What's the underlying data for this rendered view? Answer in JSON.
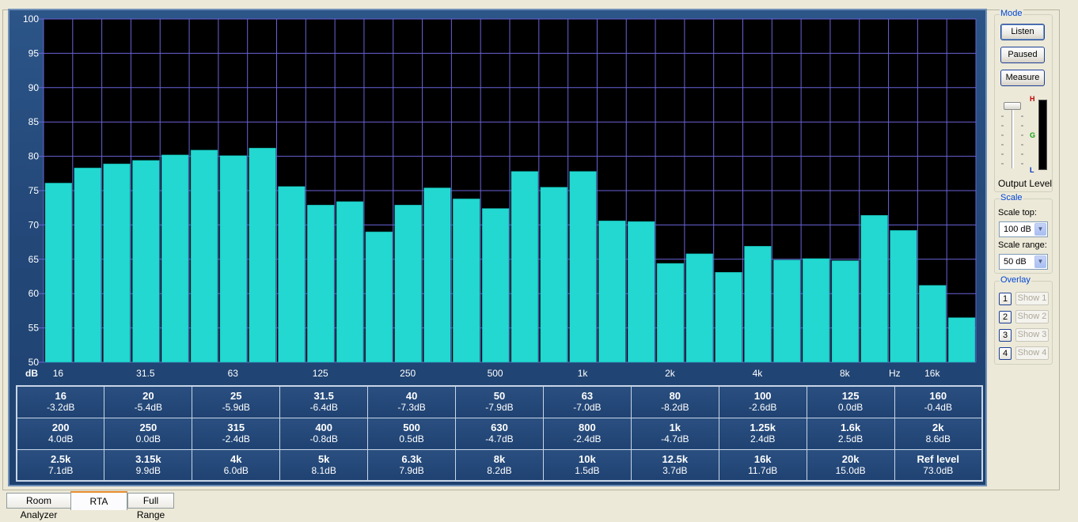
{
  "chart_data": {
    "type": "bar",
    "ylabel": "dB",
    "xunit": "Hz",
    "ylim": [
      50,
      100
    ],
    "yticks": [
      "100",
      "95",
      "90",
      "85",
      "80",
      "75",
      "70",
      "65",
      "60",
      "55",
      "50"
    ],
    "xtick_labels": [
      "16",
      "31.5",
      "63",
      "125",
      "250",
      "500",
      "1k",
      "2k",
      "4k",
      "8k",
      "16k"
    ],
    "categories": [
      "16",
      "20",
      "25",
      "31.5",
      "40",
      "50",
      "63",
      "80",
      "100",
      "125",
      "160",
      "200",
      "250",
      "315",
      "400",
      "500",
      "630",
      "800",
      "1k",
      "1.25k",
      "1.6k",
      "2k",
      "2.5k",
      "3.15k",
      "4k",
      "5k",
      "6.3k",
      "8k",
      "10k",
      "12.5k",
      "16k",
      "20k"
    ],
    "values": [
      76.1,
      78.3,
      78.9,
      79.4,
      80.2,
      80.9,
      80.1,
      81.2,
      75.6,
      72.9,
      73.4,
      69.0,
      72.9,
      75.4,
      73.8,
      72.4,
      77.8,
      75.5,
      77.8,
      70.6,
      70.5,
      64.4,
      65.8,
      63.1,
      66.9,
      64.9,
      65.1,
      64.8,
      71.4,
      69.2,
      61.2,
      56.5
    ],
    "grid": true,
    "bar_color": "#22d8d0",
    "background": "#000000",
    "grid_color": "#6a62d8"
  },
  "table": {
    "rows": [
      [
        {
          "name": "16",
          "val": "-3.2dB"
        },
        {
          "name": "20",
          "val": "-5.4dB"
        },
        {
          "name": "25",
          "val": "-5.9dB"
        },
        {
          "name": "31.5",
          "val": "-6.4dB"
        },
        {
          "name": "40",
          "val": "-7.3dB"
        },
        {
          "name": "50",
          "val": "-7.9dB"
        },
        {
          "name": "63",
          "val": "-7.0dB"
        },
        {
          "name": "80",
          "val": "-8.2dB"
        },
        {
          "name": "100",
          "val": "-2.6dB"
        },
        {
          "name": "125",
          "val": "0.0dB"
        },
        {
          "name": "160",
          "val": "-0.4dB"
        }
      ],
      [
        {
          "name": "200",
          "val": "4.0dB"
        },
        {
          "name": "250",
          "val": "0.0dB"
        },
        {
          "name": "315",
          "val": "-2.4dB"
        },
        {
          "name": "400",
          "val": "-0.8dB"
        },
        {
          "name": "500",
          "val": "0.5dB"
        },
        {
          "name": "630",
          "val": "-4.7dB"
        },
        {
          "name": "800",
          "val": "-2.4dB"
        },
        {
          "name": "1k",
          "val": "-4.7dB"
        },
        {
          "name": "1.25k",
          "val": "2.4dB"
        },
        {
          "name": "1.6k",
          "val": "2.5dB"
        },
        {
          "name": "2k",
          "val": "8.6dB"
        }
      ],
      [
        {
          "name": "2.5k",
          "val": "7.1dB"
        },
        {
          "name": "3.15k",
          "val": "9.9dB"
        },
        {
          "name": "4k",
          "val": "6.0dB"
        },
        {
          "name": "5k",
          "val": "8.1dB"
        },
        {
          "name": "6.3k",
          "val": "7.9dB"
        },
        {
          "name": "8k",
          "val": "8.2dB"
        },
        {
          "name": "10k",
          "val": "1.5dB"
        },
        {
          "name": "12.5k",
          "val": "3.7dB"
        },
        {
          "name": "16k",
          "val": "11.7dB"
        },
        {
          "name": "20k",
          "val": "15.0dB"
        },
        {
          "name": "Ref level",
          "val": "73.0dB"
        }
      ]
    ]
  },
  "mode": {
    "title": "Mode",
    "listen_label": "Listen",
    "paused_label": "Paused",
    "measure_label": "Measure",
    "output_level_label": "Output Level",
    "meter_labels": {
      "high": "H",
      "good": "G",
      "low": "L"
    }
  },
  "scale": {
    "title": "Scale",
    "top_label": "Scale top:",
    "top_value": "100 dB",
    "range_label": "Scale range:",
    "range_value": "50 dB"
  },
  "overlay": {
    "title": "Overlay",
    "items": [
      {
        "num": "1",
        "label": "Show 1"
      },
      {
        "num": "2",
        "label": "Show 2"
      },
      {
        "num": "3",
        "label": "Show 3"
      },
      {
        "num": "4",
        "label": "Show 4"
      }
    ]
  },
  "tabs": [
    {
      "label": "Room Analyzer"
    },
    {
      "label": "RTA",
      "active": true
    },
    {
      "label": "Full Range"
    }
  ]
}
